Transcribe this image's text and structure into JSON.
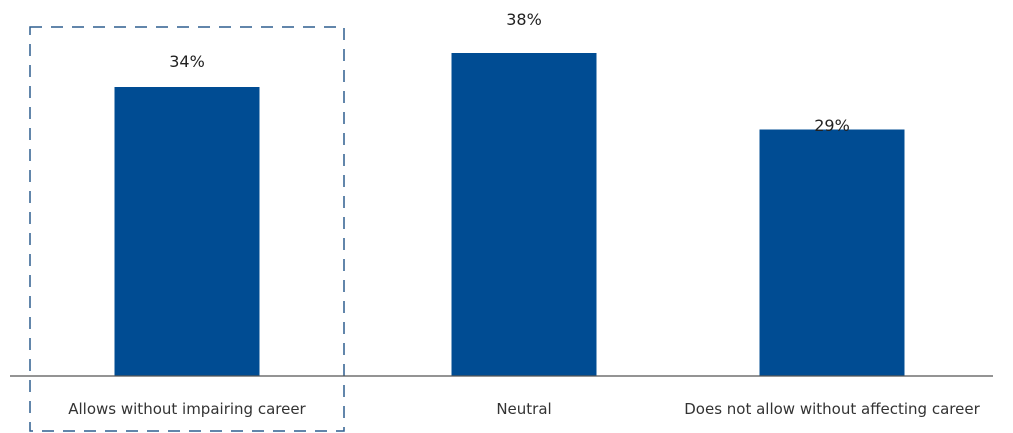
{
  "chart_data": {
    "type": "bar",
    "categories": [
      "Allows without impairing career",
      "Neutral",
      "Does not allow without affecting career"
    ],
    "values": [
      34,
      38,
      29
    ],
    "value_labels": [
      "34%",
      "38%",
      "29%"
    ],
    "ylim": [
      0,
      40
    ],
    "grid": false,
    "highlighted_category": "Allows without impairing career",
    "colors": {
      "bar": "#004C93",
      "axis": "#555555",
      "highlight_border": "#2F5F8F"
    }
  }
}
